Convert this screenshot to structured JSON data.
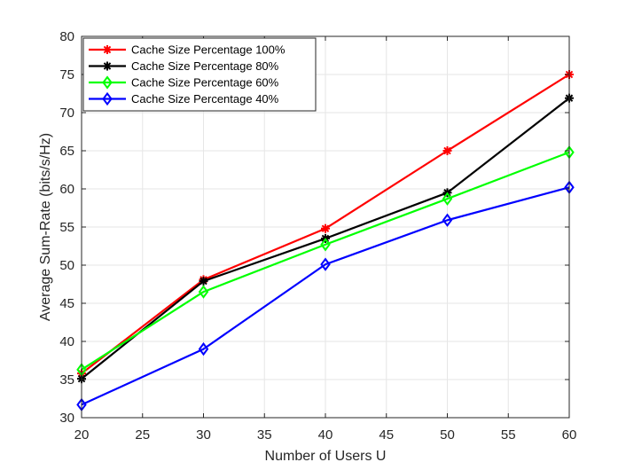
{
  "chart_data": {
    "type": "line",
    "xlabel": "Number of Users U",
    "ylabel": "Average Sum-Rate (bits/s/Hz)",
    "xlim": [
      20,
      60
    ],
    "ylim": [
      30,
      80
    ],
    "xticks": [
      20,
      25,
      30,
      35,
      40,
      45,
      50,
      55,
      60
    ],
    "yticks": [
      30,
      35,
      40,
      45,
      50,
      55,
      60,
      65,
      70,
      75,
      80
    ],
    "grid": true,
    "legend_position": "top-left",
    "x": [
      20,
      30,
      40,
      50,
      60
    ],
    "series": [
      {
        "name": "Cache Size Percentage 100%",
        "color": "#ff0000",
        "marker": "asterisk",
        "values": [
          35.8,
          48.1,
          54.8,
          65.0,
          75.0
        ]
      },
      {
        "name": "Cache Size Percentage 80%",
        "color": "#000000",
        "marker": "asterisk",
        "values": [
          35.1,
          47.9,
          53.5,
          59.5,
          71.9
        ]
      },
      {
        "name": "Cache Size Percentage 60%",
        "color": "#00ff00",
        "marker": "diamond",
        "values": [
          36.3,
          46.5,
          52.7,
          58.7,
          64.8
        ]
      },
      {
        "name": "Cache Size Percentage 40%",
        "color": "#0000ff",
        "marker": "diamond",
        "values": [
          31.7,
          39.0,
          50.1,
          55.9,
          60.2
        ]
      }
    ]
  }
}
